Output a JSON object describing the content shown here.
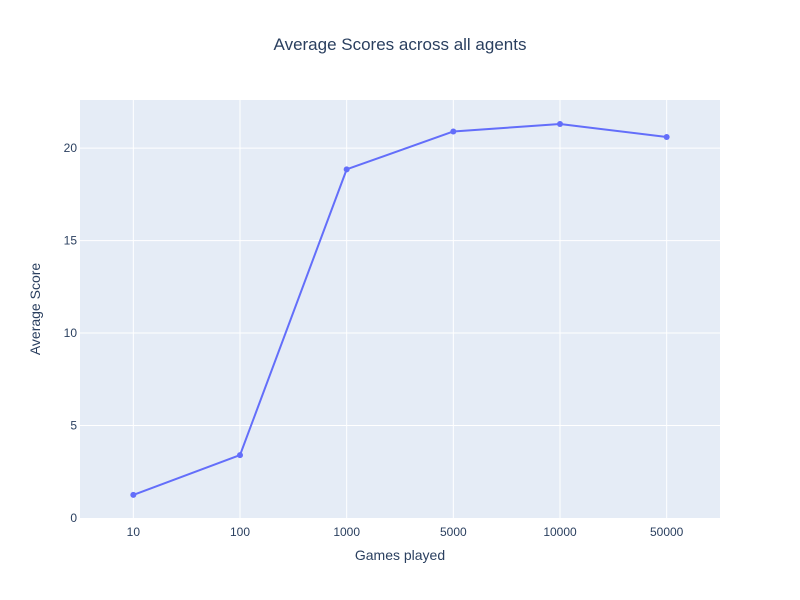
{
  "chart_data": {
    "type": "line",
    "title": "Average Scores across all agents",
    "xlabel": "Games played",
    "ylabel": "Average Score",
    "categories": [
      "10",
      "100",
      "1000",
      "5000",
      "10000",
      "50000"
    ],
    "series": [
      {
        "values": [
          1.25,
          3.4,
          18.85,
          20.9,
          21.3,
          20.6
        ],
        "color": "#636efa",
        "mode": "lines+markers"
      }
    ],
    "ylim": [
      0,
      22.6
    ],
    "yticks": [
      0,
      5,
      10,
      15,
      20
    ],
    "grid": true,
    "legend": "none",
    "plot_background": "#e5ecf6",
    "grid_color": "#ffffff",
    "text_color": "#2a3f5f"
  }
}
